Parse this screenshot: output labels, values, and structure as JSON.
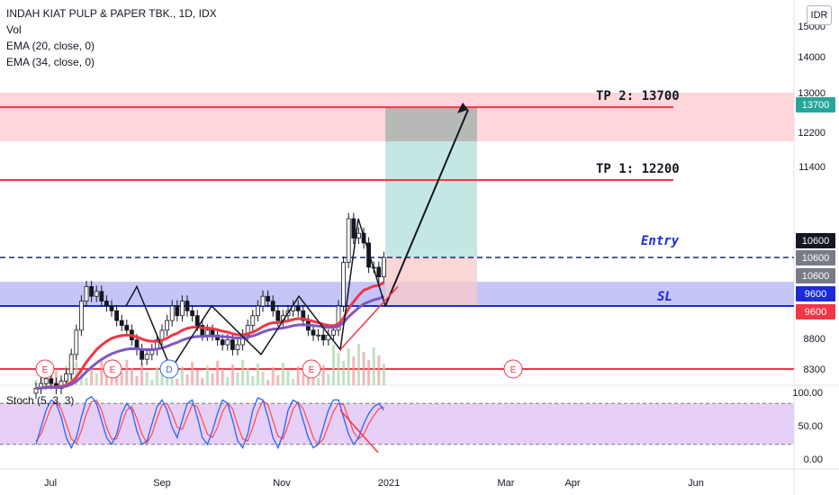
{
  "legend": {
    "symbol": "INDAH KIAT PULP & PAPER TBK., 1D, IDX",
    "vol": "Vol",
    "ema20": "EMA (20, close, 0)",
    "ema34": "EMA (34, close, 0)"
  },
  "currency": "IDR",
  "stoch_label": "Stoch (5, 3, 3)",
  "colors": {
    "up": "#26a69a",
    "down": "#131722",
    "ema20": "#f23645",
    "ema34": "#7e57c2",
    "tp_zone": "#ffcdd2",
    "sl_zone": "#b7b8f5",
    "target_box": "#b2dfdb",
    "level_red": "#f23645",
    "level_blue": "#1e2bdb",
    "stoch_bg": "#e1c4f5",
    "stoch_k": "#2962ff",
    "stoch_d": "#ff5252"
  },
  "chart_data": {
    "type": "candlestick",
    "y_ticks": [
      "15000",
      "14000",
      "13000",
      "12200",
      "11400",
      "10600",
      "10600",
      "10600",
      "9600",
      "9600",
      "8800",
      "8300"
    ],
    "y_ticks_visible": [
      "15000",
      "14000",
      "13000",
      "12200",
      "11400",
      "8800",
      "8300"
    ],
    "x_ticks": [
      "Jul",
      "Sep",
      "Nov",
      "2021",
      "Mar",
      "Apr",
      "Jun"
    ],
    "price_labels": [
      {
        "text": "13700",
        "color": "#26a69a"
      },
      {
        "text": "10600",
        "color": "#131722"
      },
      {
        "text": "10600",
        "color": "#787b86"
      },
      {
        "text": "10600",
        "color": "#787b86"
      },
      {
        "text": "9600",
        "color": "#1e2bdb"
      },
      {
        "text": "9600",
        "color": "#f23645"
      }
    ],
    "annotations": [
      {
        "text": "TP 2: 13700",
        "value": 13700
      },
      {
        "text": "TP 1: 12200",
        "value": 12200
      },
      {
        "text": "Entry",
        "value": 10600
      },
      {
        "text": "SL",
        "value": 9600
      }
    ],
    "levels": {
      "tp2": 13700,
      "tp1": 12200,
      "entry": 10600,
      "sl": 9600,
      "support": 8300
    },
    "zones": {
      "tp_zone": [
        13000,
        14000
      ],
      "sl_zone": [
        9600,
        10100
      ]
    },
    "events": [
      "E",
      "E",
      "D",
      "E",
      "E"
    ],
    "stoch": {
      "ticks": [
        "100.00",
        "50.00",
        "0.00"
      ],
      "upper_band": 80,
      "lower_band": 20
    },
    "candles_close": [
      7900,
      8000,
      8100,
      8000,
      7900,
      8050,
      8200,
      8600,
      9100,
      9700,
      10000,
      9800,
      9900,
      9700,
      9600,
      9500,
      9300,
      9200,
      9100,
      8900,
      8700,
      8500,
      8600,
      8700,
      8900,
      9100,
      9300,
      9600,
      9400,
      9700,
      9500,
      9400,
      9200,
      9000,
      9100,
      9000,
      8900,
      8800,
      8900,
      8700,
      8800,
      9000,
      9200,
      9400,
      9600,
      9800,
      9700,
      9500,
      9300,
      9400,
      9500,
      9600,
      9500,
      9300,
      9100,
      9000,
      9000,
      8900,
      9000,
      9100,
      9600,
      10500,
      11400,
      11000,
      11100,
      10900,
      10400,
      10400,
      10200,
      10600
    ],
    "stoch_k": [
      20,
      45,
      70,
      85,
      80,
      60,
      30,
      15,
      30,
      60,
      85,
      90,
      80,
      55,
      30,
      20,
      35,
      65,
      80,
      70,
      40,
      20,
      25,
      50,
      75,
      85,
      70,
      45,
      30,
      55,
      80,
      85,
      60,
      30,
      20,
      40,
      65,
      85,
      80,
      55,
      25,
      15,
      35,
      70,
      88,
      85,
      60,
      30,
      15,
      35,
      70,
      85,
      80,
      55,
      30,
      15,
      20,
      45,
      70,
      85,
      85,
      60,
      35,
      20,
      30,
      50,
      65,
      75,
      80,
      70
    ],
    "stoch_d": [
      25,
      35,
      55,
      75,
      82,
      72,
      50,
      28,
      22,
      40,
      65,
      82,
      85,
      70,
      45,
      28,
      28,
      50,
      70,
      75,
      58,
      35,
      22,
      35,
      58,
      78,
      80,
      65,
      45,
      42,
      60,
      78,
      75,
      55,
      35,
      30,
      45,
      68,
      80,
      72,
      48,
      28,
      25,
      45,
      68,
      84,
      78,
      55,
      32,
      28,
      48,
      72,
      82,
      72,
      52,
      30,
      20,
      28,
      48,
      68,
      80,
      78,
      58,
      38,
      28,
      35,
      50,
      62,
      72,
      75
    ]
  }
}
